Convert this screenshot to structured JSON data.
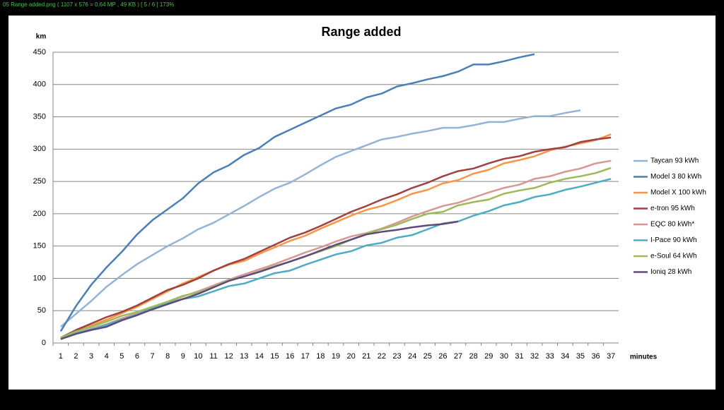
{
  "viewer": {
    "status": "05 Range added.png  ( 1107 x 576 = 0.64 MP  ,  49 KB )  [ 5 / 6 ]   173%"
  },
  "chart_data": {
    "type": "line",
    "title": "Range added",
    "y_label": "km",
    "x_label": "minutes",
    "categories": [
      "1",
      "2",
      "3",
      "4",
      "5",
      "6",
      "7",
      "8",
      "9",
      "10",
      "11",
      "12",
      "13",
      "14",
      "15",
      "16",
      "17",
      "18",
      "19",
      "20",
      "21",
      "22",
      "23",
      "24",
      "25",
      "26",
      "27",
      "28",
      "29",
      "30",
      "31",
      "32",
      "33",
      "34",
      "35",
      "36",
      "37"
    ],
    "ylim": [
      0,
      450
    ],
    "yticks": [
      0,
      50,
      100,
      150,
      200,
      250,
      300,
      350,
      400,
      450
    ],
    "grid": true,
    "legend": "right",
    "series": [
      {
        "name": "Taycan 93 kWh",
        "color": "#95b3d7",
        "values": [
          25,
          45,
          65,
          87,
          105,
          122,
          136,
          150,
          162,
          176,
          186,
          199,
          212,
          226,
          239,
          248,
          261,
          275,
          288,
          297,
          306,
          315,
          319,
          324,
          328,
          333,
          333,
          337,
          342,
          342,
          347,
          351,
          351,
          356,
          360,
          null,
          null
        ]
      },
      {
        "name": "Model 3 80 kWh",
        "color": "#4a7ebb",
        "values": [
          18,
          57,
          90,
          117,
          141,
          168,
          190,
          207,
          224,
          247,
          264,
          275,
          291,
          302,
          319,
          330,
          341,
          352,
          363,
          369,
          380,
          386,
          397,
          402,
          408,
          413,
          420,
          431,
          431,
          436,
          442,
          447,
          null,
          null,
          null,
          null,
          null
        ]
      },
      {
        "name": "Model X 100 kWh",
        "color": "#f79646",
        "values": [
          8,
          18,
          27,
          36,
          46,
          56,
          68,
          80,
          92,
          102,
          112,
          121,
          127,
          138,
          148,
          158,
          166,
          177,
          187,
          197,
          206,
          212,
          221,
          231,
          237,
          247,
          252,
          262,
          268,
          278,
          283,
          289,
          298,
          304,
          309,
          314,
          323
        ]
      },
      {
        "name": "e-tron 95 kWh",
        "color": "#a0413e",
        "values": [
          8,
          20,
          30,
          40,
          48,
          58,
          70,
          82,
          90,
          100,
          112,
          122,
          130,
          141,
          152,
          163,
          171,
          181,
          192,
          203,
          212,
          222,
          230,
          240,
          248,
          258,
          266,
          270,
          278,
          285,
          289,
          296,
          300,
          303,
          311,
          315,
          318
        ]
      },
      {
        "name": "EQC 80 kWh*",
        "color": "#d99694",
        "values": [
          7,
          15,
          22,
          29,
          38,
          46,
          55,
          63,
          72,
          80,
          89,
          98,
          106,
          114,
          122,
          131,
          140,
          148,
          157,
          165,
          170,
          177,
          186,
          196,
          204,
          212,
          217,
          225,
          233,
          240,
          245,
          254,
          258,
          265,
          270,
          278,
          282
        ]
      },
      {
        "name": "I-Pace 90 kWh",
        "color": "#4bacc6",
        "values": [
          7,
          15,
          21,
          28,
          36,
          44,
          54,
          62,
          68,
          72,
          80,
          88,
          92,
          100,
          108,
          112,
          121,
          129,
          137,
          142,
          151,
          155,
          163,
          167,
          176,
          185,
          188,
          197,
          204,
          213,
          218,
          226,
          230,
          237,
          242,
          248,
          254
        ]
      },
      {
        "name": "e-Soul 64 kWh",
        "color": "#9bbb59",
        "values": [
          8,
          18,
          25,
          33,
          42,
          48,
          56,
          64,
          73,
          78,
          87,
          97,
          103,
          111,
          119,
          126,
          134,
          142,
          150,
          160,
          169,
          176,
          183,
          192,
          200,
          203,
          213,
          218,
          222,
          231,
          236,
          240,
          248,
          254,
          258,
          263,
          271
        ]
      },
      {
        "name": "Ioniq 28 kWh",
        "color": "#604a7b",
        "values": [
          6,
          14,
          20,
          25,
          35,
          43,
          52,
          60,
          68,
          76,
          86,
          96,
          103,
          110,
          118,
          126,
          134,
          143,
          152,
          160,
          168,
          172,
          175,
          179,
          182,
          184,
          188,
          null,
          null,
          null,
          null,
          null,
          null,
          null,
          null,
          null,
          null
        ]
      }
    ]
  }
}
